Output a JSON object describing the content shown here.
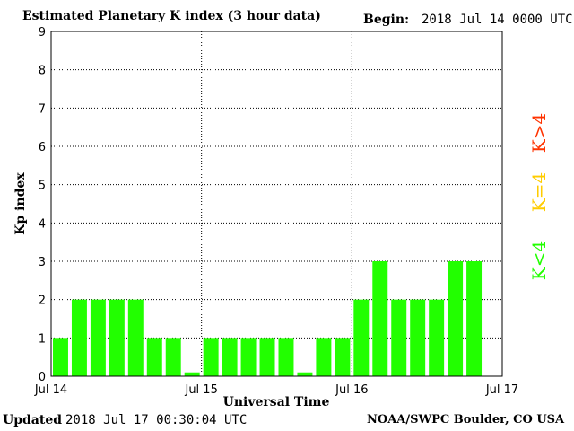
{
  "header": {
    "title": "Estimated Planetary K index (3 hour data)",
    "begin_label": "Begin:",
    "begin_value": "2018 Jul 14 0000 UTC"
  },
  "footer": {
    "updated_label": "Updated",
    "updated_value": "2018 Jul 17 00:30:04 UTC",
    "credit": "NOAA/SWPC Boulder, CO USA"
  },
  "colors": {
    "bar": "#22ff00",
    "k_below": "#22ff00",
    "k_equal": "#ffcc00",
    "k_above": "#ff3300",
    "grid": "#000000"
  },
  "chart_data": {
    "type": "bar",
    "title": "Estimated Planetary K index (3 hour data)",
    "xlabel": "Universal Time",
    "ylabel": "Kp index",
    "ylim": [
      0,
      9
    ],
    "yticks": [
      "0",
      "1",
      "2",
      "3",
      "4",
      "5",
      "6",
      "7",
      "8",
      "9"
    ],
    "x_tick_labels": [
      "Jul 14",
      "Jul 15",
      "Jul 16",
      "Jul 17"
    ],
    "grid": true,
    "values": [
      1,
      2,
      2,
      2,
      2,
      1,
      1,
      0.1,
      1,
      1,
      1,
      1,
      1,
      0.1,
      1,
      1,
      2,
      3,
      2,
      2,
      2,
      3,
      3
    ],
    "legend": [
      "K<4",
      "K=4",
      "K>4"
    ]
  }
}
